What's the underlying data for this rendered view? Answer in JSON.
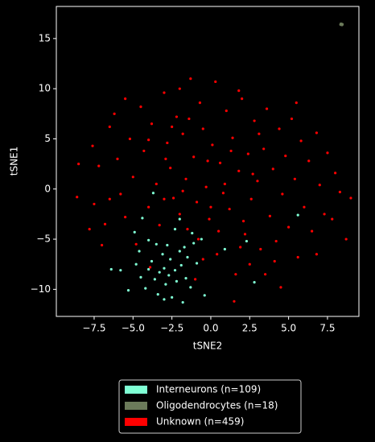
{
  "chart_data": {
    "type": "scatter",
    "xlabel": "tSNE2",
    "ylabel": "tSNE1",
    "xlim": [
      -9.93,
      9.52
    ],
    "ylim": [
      -12.7,
      18.2
    ],
    "xticks": [
      {
        "value": -7.5,
        "label": "−7.5"
      },
      {
        "value": -5,
        "label": "−5.0"
      },
      {
        "value": -2.5,
        "label": "−2.5"
      },
      {
        "value": 0,
        "label": "0.0"
      },
      {
        "value": 2.5,
        "label": "2.5"
      },
      {
        "value": 5,
        "label": "5.0"
      },
      {
        "value": 7.5,
        "label": "7.5"
      }
    ],
    "yticks": [
      {
        "value": -10,
        "label": "−10"
      },
      {
        "value": -5,
        "label": "−5"
      },
      0,
      5,
      10,
      15
    ],
    "legend": "lower center outside",
    "series": [
      {
        "name": "Interneurons (n=109)",
        "color": "#7fffd4",
        "x": [
          -5.8,
          -5.3,
          -4.8,
          -4.5,
          -4.2,
          -4.0,
          -3.8,
          -3.6,
          -3.4,
          -3.3,
          -3.1,
          -3.0,
          -2.9,
          -2.7,
          -2.6,
          -2.5,
          -2.3,
          -2.2,
          -2.0,
          -1.9,
          -1.8,
          -1.6,
          -1.5,
          -1.3,
          -1.1,
          -0.9,
          -0.4,
          -3.5,
          -4.0,
          -4.4,
          -4.9,
          -2.3,
          -1.7,
          -0.6,
          0.9,
          2.3,
          2.8,
          5.6,
          -6.4,
          -3.7,
          -2.0,
          -1.2,
          -3.0,
          -2.8,
          -4.6
        ],
        "y": [
          -8.1,
          -10.1,
          -7.5,
          -8.8,
          -9.9,
          -8.0,
          -7.2,
          -9.0,
          -10.5,
          -8.3,
          -6.5,
          -7.9,
          -9.5,
          -8.6,
          -7.0,
          -10.8,
          -8.1,
          -9.2,
          -6.2,
          -7.6,
          -11.3,
          -8.9,
          -6.8,
          -9.8,
          -5.4,
          -7.4,
          -10.6,
          -5.5,
          -5.1,
          -2.9,
          -4.3,
          -4.0,
          -5.8,
          -5.0,
          -6.0,
          -5.2,
          -9.3,
          -2.6,
          -8.0,
          -0.4,
          -3.0,
          -4.4,
          -11.0,
          -5.6,
          -6.2
        ]
      },
      {
        "name": "Oligodendrocytes (n=18)",
        "color": "#6b7a5a",
        "x": [
          8.35,
          8.4,
          8.45,
          8.38,
          8.42,
          8.36,
          8.44,
          8.4,
          8.37,
          8.43,
          8.39,
          8.41,
          8.46,
          8.34,
          8.4,
          8.38,
          8.42,
          8.44
        ],
        "y": [
          16.4,
          16.45,
          16.38,
          16.42,
          16.36,
          16.47,
          16.41,
          16.39,
          16.44,
          16.35,
          16.4,
          16.43,
          16.42,
          16.39,
          16.37,
          16.46,
          16.41,
          16.44
        ]
      },
      {
        "name": "Unknown (n=459)",
        "color": "#ff0000",
        "x": [
          -8.5,
          -8.6,
          -7.6,
          -7.2,
          -7.5,
          -6.8,
          -7.0,
          -6.5,
          -6.2,
          -6.0,
          -5.8,
          -5.5,
          -5.2,
          -5.0,
          -4.8,
          -4.5,
          -4.3,
          -4.0,
          -3.8,
          -3.5,
          -3.3,
          -3.0,
          -2.8,
          -2.6,
          -2.4,
          -2.2,
          -2.0,
          -1.8,
          -1.6,
          -1.5,
          -1.3,
          -1.1,
          -0.9,
          -0.7,
          -0.5,
          -0.3,
          -0.1,
          0.1,
          0.3,
          0.4,
          0.6,
          0.8,
          1.0,
          1.2,
          1.4,
          1.6,
          1.8,
          2.0,
          2.2,
          2.4,
          2.6,
          2.8,
          3.0,
          3.2,
          3.4,
          3.6,
          3.8,
          4.0,
          4.2,
          4.4,
          4.6,
          4.8,
          5.0,
          5.2,
          5.4,
          5.6,
          5.8,
          6.0,
          6.3,
          6.5,
          6.8,
          7.0,
          7.3,
          7.5,
          7.8,
          8.0,
          8.3,
          8.7,
          9.0,
          -3.9,
          -1.0,
          2.5,
          4.5,
          1.5,
          -0.5,
          3.5,
          -2.0,
          1.8,
          -5.5,
          5.5,
          -4.0,
          -0.2,
          0.9,
          -1.8,
          2.1,
          -3.0,
          3.1,
          -2.5,
          1.3,
          -0.8,
          0.5,
          4.1,
          -6.5,
          6.8,
          -7.8,
          -2.9,
          2.7,
          -1.4,
          0.0,
          1.9
        ],
        "y": [
          2.5,
          -0.8,
          4.3,
          2.3,
          -1.5,
          -3.5,
          -5.6,
          6.2,
          7.5,
          3.0,
          -0.5,
          -2.8,
          5.0,
          1.2,
          -5.5,
          8.2,
          3.8,
          -1.8,
          6.5,
          0.5,
          -3.6,
          9.6,
          4.6,
          2.1,
          -0.9,
          7.2,
          -2.5,
          5.5,
          1.0,
          -4.0,
          11.0,
          3.2,
          -1.3,
          8.6,
          6.0,
          0.2,
          -3.0,
          4.4,
          10.7,
          -6.5,
          2.6,
          -0.4,
          7.8,
          -2.0,
          5.1,
          -8.5,
          1.8,
          9.0,
          -4.5,
          3.5,
          -1.0,
          6.8,
          0.8,
          -6.0,
          4.0,
          8.0,
          -2.7,
          2.0,
          -5.2,
          6.0,
          -0.5,
          3.3,
          -3.8,
          7.0,
          1.0,
          -6.8,
          4.8,
          -1.8,
          2.8,
          -4.2,
          5.6,
          0.4,
          -2.5,
          3.6,
          -3.0,
          1.6,
          -0.3,
          -5.0,
          -0.9,
          -7.8,
          -9.0,
          -7.5,
          -9.8,
          -11.2,
          -7.0,
          -8.5,
          10.0,
          9.8,
          9.0,
          8.6,
          4.9,
          2.8,
          0.5,
          -0.2,
          -3.2,
          -1.0,
          5.5,
          6.2,
          3.8,
          -5.0,
          -4.2,
          -7.2,
          -1.0,
          -6.5,
          -4.0,
          3.0,
          1.5,
          7.0,
          -1.8,
          -5.8
        ]
      }
    ]
  }
}
